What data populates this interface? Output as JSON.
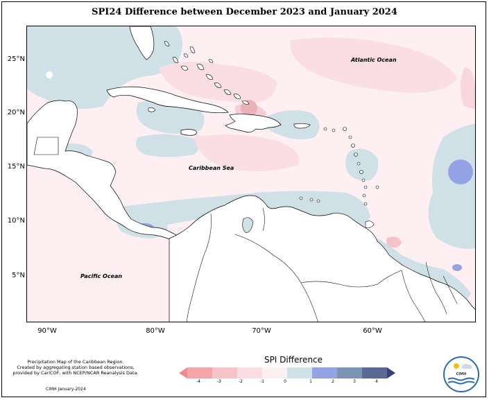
{
  "title": "SPI24 Difference between December 2023 and January 2024",
  "map": {
    "lat_labels": [
      "25°N",
      "20°N",
      "15°N",
      "10°N",
      "5°N"
    ],
    "lon_labels": [
      "90°W",
      "80°W",
      "70°W",
      "60°W"
    ],
    "ocean_labels": {
      "atlantic": "Atlantic Ocean",
      "caribbean": "Caribbean Sea",
      "pacific": "Pacific Ocean"
    },
    "colors": {
      "ocean_neutral": "#fdeff2",
      "neg1": "#fbdde4",
      "neg2": "#f3c2cb",
      "pos1": "#cfe0e7",
      "pos2": "#94a3e3",
      "land": "#ffffff"
    }
  },
  "credits": {
    "line1": "Precipitation Map of the Caribbean Region.",
    "line2": "Created by aggregating station based observations,",
    "line3": "provided by CariCOF, with NCEP/NCAR Reanalysis Data.",
    "date": "CIMH January-2024"
  },
  "legend": {
    "title": "SPI Difference",
    "ticks": [
      "-4",
      "-3",
      "-2",
      "-1",
      "0",
      "1",
      "2",
      "3",
      "4"
    ],
    "colors": [
      "#f28a8f",
      "#f4a5aa",
      "#f5c3c8",
      "#fbdde4",
      "#fdf0f3",
      "#cfe0e7",
      "#94a3e3",
      "#7d95b5",
      "#5a6a95",
      "#3b3f7a"
    ]
  },
  "logo": {
    "name": "logo-cimh",
    "text": "CIMH"
  }
}
